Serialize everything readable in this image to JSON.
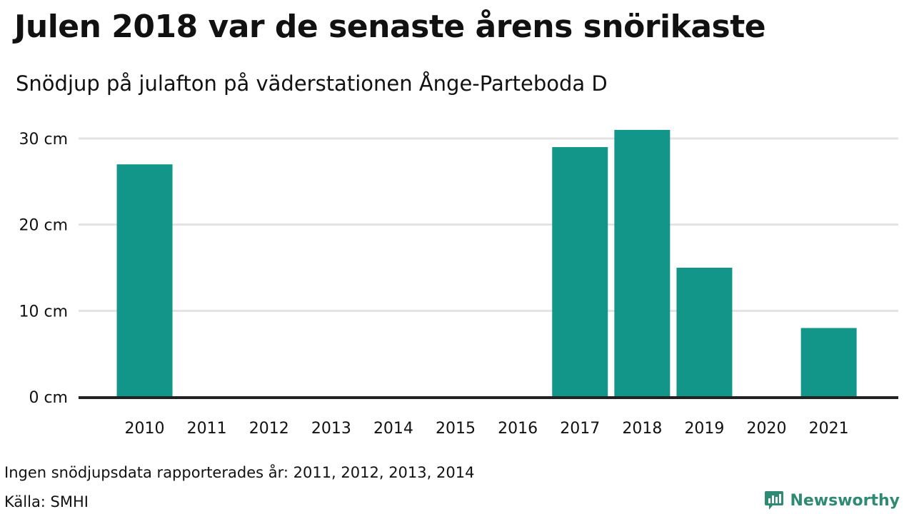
{
  "title": "Julen 2018 var de senaste årens snörikaste",
  "subtitle": "Snödjup på julafton på väderstationen Ånge-Parteboda D",
  "note": "Ingen snödjupsdata rapporterades år: 2011, 2012, 2013, 2014",
  "source": "Källa: SMHI",
  "brand": {
    "name": "Newsworthy",
    "color": "#2f8a73",
    "icon": "bar-chart-speech-bubble-icon"
  },
  "colors": {
    "bar": "#13968a",
    "grid": "#e3e3e3",
    "axis": "#222222",
    "text": "#111111"
  },
  "chart_data": {
    "type": "bar",
    "categories": [
      "2010",
      "2011",
      "2012",
      "2013",
      "2014",
      "2015",
      "2016",
      "2017",
      "2018",
      "2019",
      "2020",
      "2021"
    ],
    "values": [
      27,
      null,
      null,
      null,
      null,
      0,
      0,
      29,
      31,
      15,
      0,
      8
    ],
    "ylim": [
      0,
      30
    ],
    "yticks": [
      0,
      10,
      20,
      30
    ],
    "ytick_labels": [
      "0 cm",
      "10 cm",
      "20 cm",
      "30 cm"
    ],
    "unit": "cm",
    "grid": true,
    "legend": "none",
    "title": "Julen 2018 var de senaste årens snörikaste",
    "xlabel": "",
    "ylabel": ""
  }
}
